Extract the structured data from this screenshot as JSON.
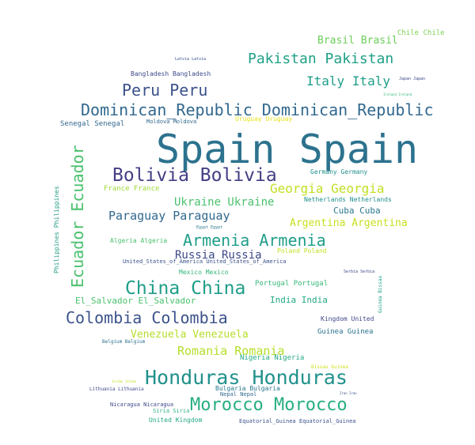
{
  "words": [
    {
      "text": "Spain Spain",
      "color": "#2c728e"
    },
    {
      "text": "Dominican_Republic Dominican_Republic",
      "color": "#31688e"
    },
    {
      "text": "Bolivia Bolivia",
      "color": "#433e85"
    },
    {
      "text": "Honduras Honduras",
      "color": "#21918c"
    },
    {
      "text": "Morocco Morocco",
      "color": "#28ae80"
    },
    {
      "text": "China China",
      "color": "#1f9e89"
    },
    {
      "text": "Colombia Colombia",
      "color": "#3b528b"
    },
    {
      "text": "Ecuador Ecuador",
      "color": "#4ac16d"
    },
    {
      "text": "Pakistan Pakistan",
      "color": "#1fa187"
    },
    {
      "text": "Peru Peru",
      "color": "#3b528b"
    },
    {
      "text": "Armenia Armenia",
      "color": "#1f9e89"
    },
    {
      "text": "Italy Italy",
      "color": "#1f9e89"
    },
    {
      "text": "Georgia Georgia",
      "color": "#c2df23"
    },
    {
      "text": "Paraguay Paraguay",
      "color": "#31688e"
    },
    {
      "text": "Romania Romania",
      "color": "#b5de2b"
    },
    {
      "text": "Brasil Brasil",
      "color": "#6ccd5a"
    },
    {
      "text": "Ukraine Ukraine",
      "color": "#4ac16d"
    },
    {
      "text": "Russia Russia",
      "color": "#3e4989"
    },
    {
      "text": "Venezuela Venezuela",
      "color": "#b5de2b"
    },
    {
      "text": "Argentina Argentina",
      "color": "#c8e020"
    },
    {
      "text": "Cuba Cuba",
      "color": "#2a788e"
    },
    {
      "text": "India India",
      "color": "#22a884"
    },
    {
      "text": "El_Salvador El_Salvador",
      "color": "#4ac16d"
    },
    {
      "text": "Chile Chile",
      "color": "#7ad151"
    },
    {
      "text": "Senegal Senegal",
      "color": "#31688e"
    },
    {
      "text": "Portugal Portugal",
      "color": "#35b779"
    },
    {
      "text": "Guinea Guinea",
      "color": "#2c728e"
    },
    {
      "text": "Nigeria Nigeria",
      "color": "#22a884"
    },
    {
      "text": "Philippines Philippines",
      "color": "#2a9e8a"
    },
    {
      "text": "France France",
      "color": "#a0da39"
    },
    {
      "text": "Algeria Algeria",
      "color": "#4ac16d"
    },
    {
      "text": "Bangladesh Bangladesh",
      "color": "#3e4a89"
    },
    {
      "text": "Germany Germany",
      "color": "#21918c"
    },
    {
      "text": "Netherlands Netherlands",
      "color": "#21918c"
    },
    {
      "text": "Kingdom United",
      "color": "#3e4989"
    },
    {
      "text": "Uruguay Uruguay",
      "color": "#e5e419"
    },
    {
      "text": "Moldova Moldova",
      "color": "#31688e"
    },
    {
      "text": "Poland Poland",
      "color": "#c2df23"
    },
    {
      "text": "Mexico Mexico",
      "color": "#35b779"
    },
    {
      "text": "United_States_of_America United_States_of_America",
      "color": "#3b528b"
    },
    {
      "text": "Belgium Belgium",
      "color": "#2c728e"
    },
    {
      "text": "Bulgaria Bulgaria",
      "color": "#2a788e"
    },
    {
      "text": "Nepal Nepal",
      "color": "#31688e"
    },
    {
      "text": "Lithuania Lithuania",
      "color": "#3e4989"
    },
    {
      "text": "Nicaragua Nicaragua",
      "color": "#3e4989"
    },
    {
      "text": "Siria Siria",
      "color": "#2ab07f"
    },
    {
      "text": "United Kingdom",
      "color": "#22a884"
    },
    {
      "text": "Equatorial_Guinea Equatorial_Guinea",
      "color": "#3b528b"
    },
    {
      "text": "Bissau Guinea",
      "color": "#d0e11c"
    },
    {
      "text": "Guinea Bissau",
      "color": "#1fa187"
    },
    {
      "text": "Latvia Latvia",
      "color": "#3b528b"
    },
    {
      "text": "Japan Japan",
      "color": "#3e4989"
    },
    {
      "text": "Ireland Ireland",
      "color": "#35b779"
    },
    {
      "text": "Egypt Egypt",
      "color": "#2a788e"
    },
    {
      "text": "Serbia Serbia",
      "color": "#3e4989"
    },
    {
      "text": "Iran Iran",
      "color": "#3b528b"
    },
    {
      "text": "Jordan Jordan",
      "color": "#c2df23"
    }
  ]
}
